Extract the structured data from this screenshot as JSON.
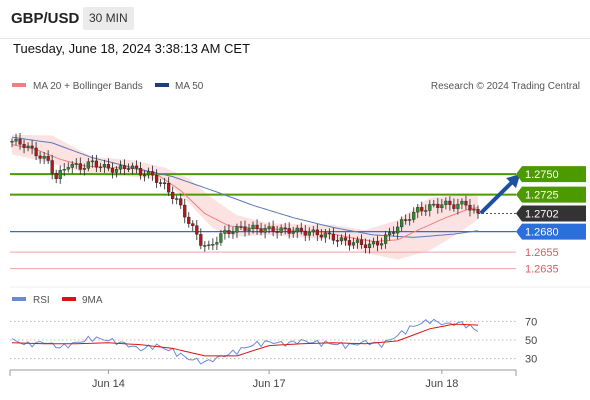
{
  "header": {
    "symbol": "GBP/USD",
    "timeframe": "30 MIN"
  },
  "subheader": {
    "datetime": "Tuesday, June 18, 2024 3:38:13 AM CET"
  },
  "legend": {
    "ma20": "MA 20 + Bollinger Bands",
    "ma50": "MA 50",
    "research": "Research © 2024 Trading Central"
  },
  "rsi_legend": {
    "rsi": "RSI",
    "ma9": "9MA"
  },
  "colors": {
    "ma20": "#f08080",
    "ma50": "#5a7ab8",
    "band": "#fde2e2",
    "green": "#4c9a00",
    "blue": "#2a6fdb",
    "red": "#e0585f",
    "dark": "#333333",
    "arrow": "#1e50a0"
  },
  "chart_data": [
    {
      "type": "line",
      "title": "",
      "x_ticks": [
        "Jun 14",
        "Jun 17",
        "Jun 18"
      ],
      "levels": [
        {
          "label": "1.2750",
          "value": 1.275,
          "kind": "resistance"
        },
        {
          "label": "1.2725",
          "value": 1.2725,
          "kind": "resistance"
        },
        {
          "label": "1.2702",
          "value": 1.2702,
          "kind": "last"
        },
        {
          "label": "1.2680",
          "value": 1.268,
          "kind": "pivot"
        },
        {
          "label": "1.2655",
          "value": 1.2655,
          "kind": "support"
        },
        {
          "label": "1.2635",
          "value": 1.2635,
          "kind": "support"
        }
      ],
      "ylim": [
        1.2615,
        1.285
      ],
      "price_path": [
        [
          0,
          1.279
        ],
        [
          3,
          1.2786
        ],
        [
          6,
          1.2775
        ],
        [
          9,
          1.2765
        ],
        [
          11,
          1.2745
        ],
        [
          14,
          1.2762
        ],
        [
          17,
          1.2758
        ],
        [
          20,
          1.2764
        ],
        [
          23,
          1.2758
        ],
        [
          26,
          1.2755
        ],
        [
          29,
          1.276
        ],
        [
          32,
          1.2752
        ],
        [
          35,
          1.2748
        ],
        [
          38,
          1.2735
        ],
        [
          41,
          1.2718
        ],
        [
          44,
          1.2692
        ],
        [
          47,
          1.2667
        ],
        [
          49,
          1.266
        ],
        [
          52,
          1.2676
        ],
        [
          55,
          1.2682
        ],
        [
          58,
          1.2685
        ],
        [
          62,
          1.2683
        ],
        [
          66,
          1.2682
        ],
        [
          70,
          1.2681
        ],
        [
          74,
          1.2679
        ],
        [
          78,
          1.2676
        ],
        [
          82,
          1.2669
        ],
        [
          86,
          1.2666
        ],
        [
          89,
          1.2663
        ],
        [
          92,
          1.2668
        ],
        [
          95,
          1.2682
        ],
        [
          98,
          1.2695
        ],
        [
          101,
          1.2706
        ],
        [
          104,
          1.271
        ],
        [
          107,
          1.2714
        ],
        [
          110,
          1.2712
        ],
        [
          113,
          1.2714
        ],
        [
          116,
          1.27
        ]
      ],
      "ma20_path": [
        [
          0,
          1.2786
        ],
        [
          6,
          1.278
        ],
        [
          12,
          1.2768
        ],
        [
          18,
          1.276
        ],
        [
          24,
          1.2758
        ],
        [
          30,
          1.2757
        ],
        [
          36,
          1.275
        ],
        [
          42,
          1.273
        ],
        [
          48,
          1.2702
        ],
        [
          54,
          1.2687
        ],
        [
          60,
          1.2684
        ],
        [
          66,
          1.2683
        ],
        [
          72,
          1.2681
        ],
        [
          78,
          1.2679
        ],
        [
          84,
          1.2673
        ],
        [
          90,
          1.2668
        ],
        [
          96,
          1.267
        ],
        [
          102,
          1.2684
        ],
        [
          108,
          1.2697
        ],
        [
          114,
          1.2708
        ],
        [
          116,
          1.2709
        ]
      ],
      "ma50_path": [
        [
          0,
          1.2795
        ],
        [
          10,
          1.2788
        ],
        [
          20,
          1.277
        ],
        [
          30,
          1.2758
        ],
        [
          40,
          1.2747
        ],
        [
          50,
          1.273
        ],
        [
          60,
          1.2712
        ],
        [
          70,
          1.2697
        ],
        [
          80,
          1.2685
        ],
        [
          90,
          1.2676
        ],
        [
          100,
          1.2673
        ],
        [
          110,
          1.2677
        ],
        [
          116,
          1.2681
        ]
      ],
      "band_upper": [
        [
          0,
          1.2798
        ],
        [
          10,
          1.2797
        ],
        [
          20,
          1.2771
        ],
        [
          30,
          1.2767
        ],
        [
          38,
          1.2758
        ],
        [
          44,
          1.2745
        ],
        [
          50,
          1.272
        ],
        [
          56,
          1.27
        ],
        [
          64,
          1.269
        ],
        [
          72,
          1.2689
        ],
        [
          80,
          1.2688
        ],
        [
          88,
          1.2682
        ],
        [
          96,
          1.2694
        ],
        [
          104,
          1.2721
        ],
        [
          112,
          1.2725
        ],
        [
          116,
          1.2723
        ]
      ],
      "band_lower": [
        [
          0,
          1.2774
        ],
        [
          10,
          1.2763
        ],
        [
          20,
          1.2749
        ],
        [
          30,
          1.2747
        ],
        [
          38,
          1.2742
        ],
        [
          44,
          1.2715
        ],
        [
          50,
          1.2684
        ],
        [
          56,
          1.2674
        ],
        [
          64,
          1.2676
        ],
        [
          72,
          1.2673
        ],
        [
          80,
          1.267
        ],
        [
          88,
          1.2654
        ],
        [
          96,
          1.2646
        ],
        [
          104,
          1.2657
        ],
        [
          112,
          1.2681
        ],
        [
          116,
          1.2695
        ]
      ],
      "forecast_arrow": {
        "from": [
          117,
          1.2704
        ],
        "to": [
          127,
          1.275
        ]
      }
    },
    {
      "type": "line",
      "title": "RSI",
      "y_ticks": [
        70,
        50,
        30
      ],
      "ylim": [
        20,
        80
      ],
      "rsi_path": [
        [
          0,
          50
        ],
        [
          4,
          45
        ],
        [
          8,
          48
        ],
        [
          12,
          42
        ],
        [
          16,
          47
        ],
        [
          20,
          52
        ],
        [
          24,
          50
        ],
        [
          28,
          46
        ],
        [
          32,
          40
        ],
        [
          36,
          44
        ],
        [
          40,
          38
        ],
        [
          44,
          30
        ],
        [
          48,
          26
        ],
        [
          52,
          32
        ],
        [
          56,
          38
        ],
        [
          60,
          45
        ],
        [
          64,
          48
        ],
        [
          68,
          46
        ],
        [
          72,
          49
        ],
        [
          76,
          47
        ],
        [
          80,
          46
        ],
        [
          84,
          44
        ],
        [
          88,
          48
        ],
        [
          92,
          45
        ],
        [
          96,
          55
        ],
        [
          100,
          65
        ],
        [
          104,
          71
        ],
        [
          108,
          67
        ],
        [
          112,
          68
        ],
        [
          116,
          60
        ]
      ],
      "ma9_path": [
        [
          0,
          47
        ],
        [
          8,
          46
        ],
        [
          16,
          46
        ],
        [
          24,
          47
        ],
        [
          32,
          45
        ],
        [
          40,
          41
        ],
        [
          48,
          33
        ],
        [
          56,
          33
        ],
        [
          64,
          44
        ],
        [
          72,
          46
        ],
        [
          80,
          47
        ],
        [
          88,
          46
        ],
        [
          96,
          49
        ],
        [
          104,
          62
        ],
        [
          110,
          67
        ],
        [
          116,
          66
        ]
      ]
    }
  ]
}
